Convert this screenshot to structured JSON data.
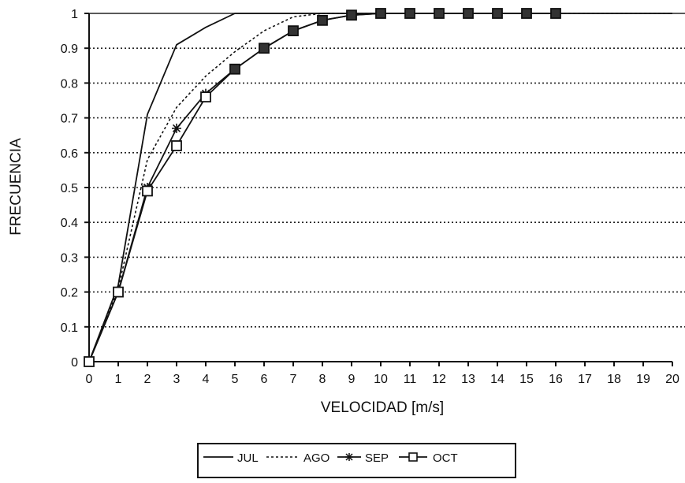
{
  "chart_data": {
    "type": "line",
    "xlabel": "VELOCIDAD [m/s]",
    "ylabel": "FRECUENCIA",
    "xlim": [
      0,
      20
    ],
    "ylim": [
      0,
      1
    ],
    "xticks": [
      "0",
      "1",
      "2",
      "3",
      "4",
      "5",
      "6",
      "7",
      "8",
      "9",
      "10",
      "11",
      "12",
      "13",
      "14",
      "15",
      "16",
      "17",
      "18",
      "19",
      "20"
    ],
    "yticks": [
      "0",
      "0.1",
      "0.2",
      "0.3",
      "0.4",
      "0.5",
      "0.6",
      "0.7",
      "0.8",
      "0.9",
      "1"
    ],
    "grid": "horizontal-dotted",
    "legend_position": "bottom",
    "series": [
      {
        "name": "JUL",
        "style": "solid",
        "marker": "none",
        "x": [
          0,
          1,
          2,
          3,
          4,
          5,
          6,
          7,
          8,
          9,
          10,
          11,
          12,
          13,
          14,
          15,
          16,
          17,
          18,
          19,
          20
        ],
        "values": [
          0,
          0.22,
          0.71,
          0.91,
          0.96,
          1,
          1,
          1,
          1,
          1,
          1,
          1,
          1,
          1,
          1,
          1,
          1,
          1,
          1,
          1,
          1
        ]
      },
      {
        "name": "AGO",
        "style": "dotted",
        "marker": "none",
        "x": [
          0,
          1,
          2,
          3,
          4,
          5,
          6,
          7,
          8,
          9,
          10,
          11,
          12,
          13,
          14,
          15,
          16,
          17,
          18,
          19,
          20
        ],
        "values": [
          0,
          0.21,
          0.58,
          0.73,
          0.82,
          0.89,
          0.95,
          0.99,
          1,
          1,
          1,
          1,
          1,
          1,
          1,
          1,
          1,
          1,
          1,
          1,
          1
        ]
      },
      {
        "name": "SEP",
        "style": "solid",
        "marker": "asterisk",
        "x": [
          0,
          1,
          2,
          3,
          4,
          5,
          6,
          7,
          8,
          9,
          10,
          11,
          12,
          13,
          14,
          15,
          16
        ],
        "values": [
          0,
          0.2,
          0.5,
          0.67,
          0.77,
          0.84,
          0.9,
          0.95,
          0.98,
          0.995,
          1,
          1,
          1,
          1,
          1,
          1,
          1
        ]
      },
      {
        "name": "OCT",
        "style": "solid",
        "marker": "square",
        "x": [
          0,
          1,
          2,
          3,
          4,
          5,
          6,
          7,
          8,
          9,
          10,
          11,
          12,
          13,
          14,
          15,
          16
        ],
        "values": [
          0,
          0.2,
          0.49,
          0.62,
          0.76,
          0.84,
          0.9,
          0.95,
          0.98,
          0.995,
          1,
          1,
          1,
          1,
          1,
          1,
          1
        ]
      }
    ]
  }
}
